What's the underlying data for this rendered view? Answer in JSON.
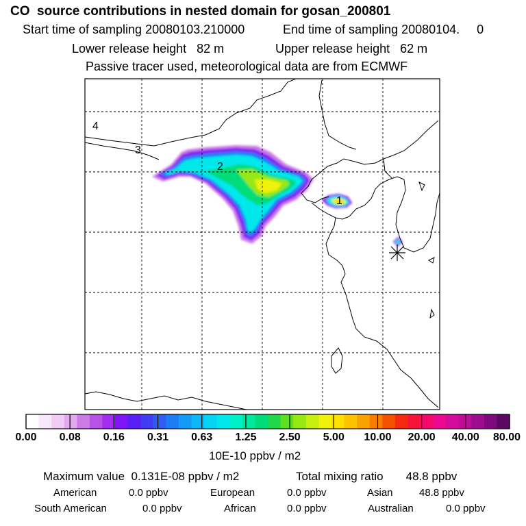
{
  "header": {
    "title": "CO  source contributions in nested domain for gosan_200801",
    "start_label": "Start time of sampling 20080103.210000",
    "end_label": "End time of sampling 20080104.     0",
    "lower_release": "Lower release height   82 m",
    "upper_release": "Upper release height   62 m",
    "tracer_note": "Passive tracer used, meteorological data are from ECMWF"
  },
  "map": {
    "region_labels": [
      "1",
      "2",
      "3",
      "4"
    ],
    "receptor_marker": "asterisk-icon"
  },
  "colorbar": {
    "tick_labels": [
      "0.00",
      "0.08",
      "0.16",
      "0.31",
      "0.63",
      "1.25",
      "2.50",
      "5.00",
      "10.00",
      "20.00",
      "40.00",
      "80.00"
    ],
    "units": "10E-10 ppbv / m2",
    "colors": [
      "#ffffff",
      "#f8e8fb",
      "#f1cdf6",
      "#e4a8f0",
      "#cc7ae6",
      "#b851e8",
      "#a22df0",
      "#7f14f5",
      "#5a1ef7",
      "#3f3cf3",
      "#2d5ef0",
      "#1e7df5",
      "#139bf7",
      "#0cb8f6",
      "#07d3f4",
      "#00e8ea",
      "#00f0c8",
      "#00e8a0",
      "#00dc78",
      "#20d84a",
      "#5ce020",
      "#96e814",
      "#c8ee10",
      "#f0f20c",
      "#fde000",
      "#fcc400",
      "#f9a300",
      "#f77e00",
      "#f45200",
      "#f52a10",
      "#f81438",
      "#f4086a",
      "#ec0890",
      "#d40c9c",
      "#bc0c98",
      "#9e0c8e",
      "#7c0a7e",
      "#5a0864"
    ]
  },
  "summary": {
    "max_value": "Maximum value  0.131E-08 ppbv / m2",
    "total_mixing": "Total mixing ratio       48.8 ppbv",
    "american_label": "American",
    "american_value": "0.0 ppbv",
    "european_label": "European",
    "european_value": "0.0 ppbv",
    "asian_label": "Asian",
    "asian_value": "48.8 ppbv",
    "south_american_label": "South American",
    "south_american_value": "0.0 ppbv",
    "african_label": "African",
    "african_value": "0.0 ppbv",
    "australian_label": "Australian",
    "australian_value": "0.0 ppbv"
  }
}
